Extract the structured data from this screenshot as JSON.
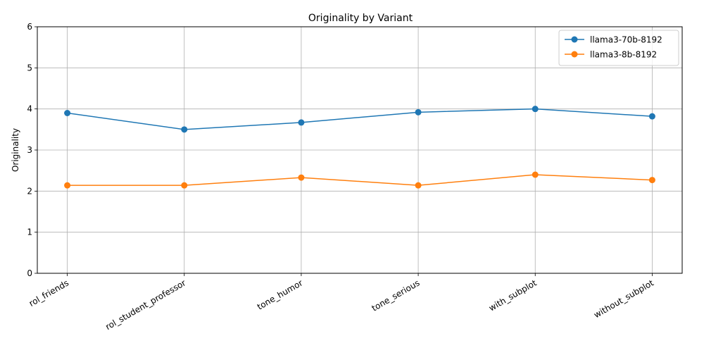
{
  "chart_data": {
    "type": "line",
    "title": "Originality by Variant",
    "xlabel": "",
    "ylabel": "Originality",
    "ylim": [
      0,
      6
    ],
    "yticks": [
      0,
      1,
      2,
      3,
      4,
      5,
      6
    ],
    "grid": true,
    "legend_position": "top-right",
    "categories": [
      "rol_friends",
      "rol_student_professor",
      "tone_humor",
      "tone_serious",
      "with_subplot",
      "without_subplot"
    ],
    "series": [
      {
        "name": "llama3-70b-8192",
        "color": "#1f77b4",
        "marker": "circle",
        "values": [
          3.9,
          3.5,
          3.67,
          3.92,
          4.0,
          3.82
        ]
      },
      {
        "name": "llama3-8b-8192",
        "color": "#ff7f0e",
        "marker": "circle",
        "values": [
          2.14,
          2.14,
          2.33,
          2.14,
          2.4,
          2.27
        ]
      }
    ]
  }
}
